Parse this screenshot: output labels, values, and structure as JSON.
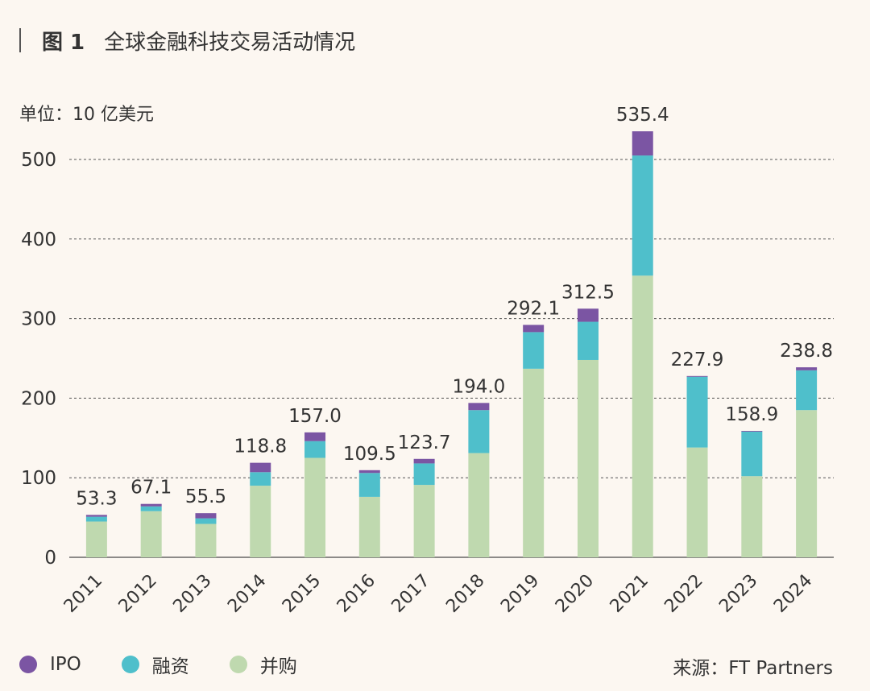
{
  "header": {
    "figure_label": "图 1",
    "title": "全球金融科技交易活动情况"
  },
  "unit_label": "单位：10 亿美元",
  "source": "来源：FT Partners",
  "colors": {
    "ipo": "#7b55a3",
    "financing": "#4fbfcb",
    "ma": "#bfd9af",
    "grid": "#555555",
    "axis": "#666666",
    "text": "#333333"
  },
  "chart_data": {
    "type": "bar",
    "stacked": true,
    "title": "全球金融科技交易活动情况",
    "ylabel": "单位：10 亿美元",
    "xlabel": "",
    "ylim": [
      0,
      550
    ],
    "yticks": [
      0,
      100,
      200,
      300,
      400,
      500
    ],
    "grid": true,
    "categories": [
      "2011",
      "2012",
      "2013",
      "2014",
      "2015",
      "2016",
      "2017",
      "2018",
      "2019",
      "2020",
      "2021",
      "2022",
      "2023",
      "2024"
    ],
    "series": [
      {
        "name": "并购",
        "key": "ma",
        "values": [
          45,
          58,
          42,
          90,
          125,
          76,
          91,
          131,
          237,
          248,
          354,
          138,
          102,
          185
        ]
      },
      {
        "name": "融资",
        "key": "financing",
        "values": [
          6,
          6,
          7,
          17,
          21,
          30,
          27,
          54,
          46,
          48,
          151,
          89,
          56,
          50
        ]
      },
      {
        "name": "IPO",
        "key": "ipo",
        "values": [
          2.3,
          3.1,
          6.5,
          11.8,
          11,
          3.5,
          5.7,
          9,
          9.1,
          16.5,
          30.4,
          0.9,
          0.9,
          3.8
        ]
      }
    ],
    "totals": [
      53.3,
      67.1,
      55.5,
      118.8,
      157.0,
      109.5,
      123.7,
      194.0,
      292.1,
      312.5,
      535.4,
      227.9,
      158.9,
      238.8
    ],
    "total_labels": [
      "53.3",
      "67.1",
      "55.5",
      "118.8",
      "157.0",
      "109.5",
      "123.7",
      "194.0",
      "292.1",
      "312.5",
      "535.4",
      "227.9",
      "158.9",
      "238.8"
    ],
    "legend": [
      "IPO",
      "融资",
      "并购"
    ]
  }
}
